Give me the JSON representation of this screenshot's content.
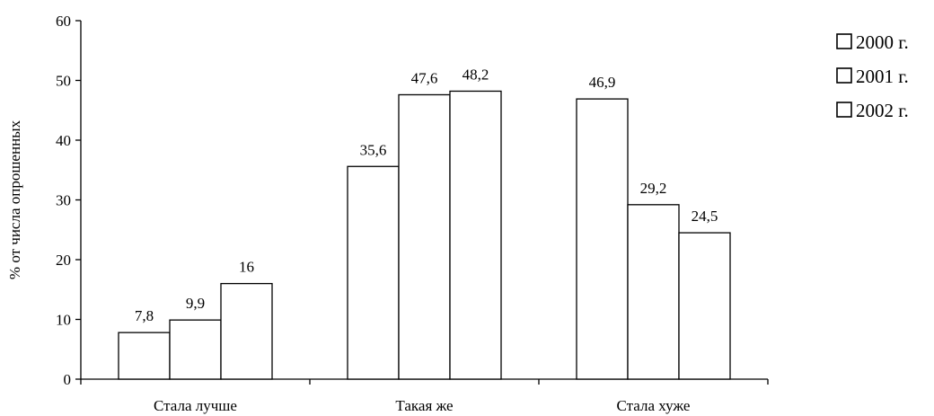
{
  "chart_data": {
    "type": "bar",
    "title": "",
    "xlabel": "",
    "ylabel": "% от числа опрошенных",
    "ylim": [
      0,
      60
    ],
    "yticks": [
      0,
      10,
      20,
      30,
      40,
      50,
      60
    ],
    "categories": [
      "Стала лучше",
      "Такая же",
      "Стала хуже"
    ],
    "series": [
      {
        "name": "2000 г.",
        "values": [
          7.8,
          35.6,
          46.9
        ],
        "labels": [
          "7,8",
          "35,6",
          "46,9"
        ]
      },
      {
        "name": "2001 г.",
        "values": [
          9.9,
          47.6,
          29.2
        ],
        "labels": [
          "9,9",
          "47,6",
          "29,2"
        ]
      },
      {
        "name": "2002 г.",
        "values": [
          16,
          48.2,
          24.5
        ],
        "labels": [
          "16",
          "48,2",
          "24,5"
        ]
      }
    ],
    "bar_fill": "#ffffff",
    "bar_stroke": "#000000",
    "grid": false,
    "legend_position": "top-right"
  }
}
